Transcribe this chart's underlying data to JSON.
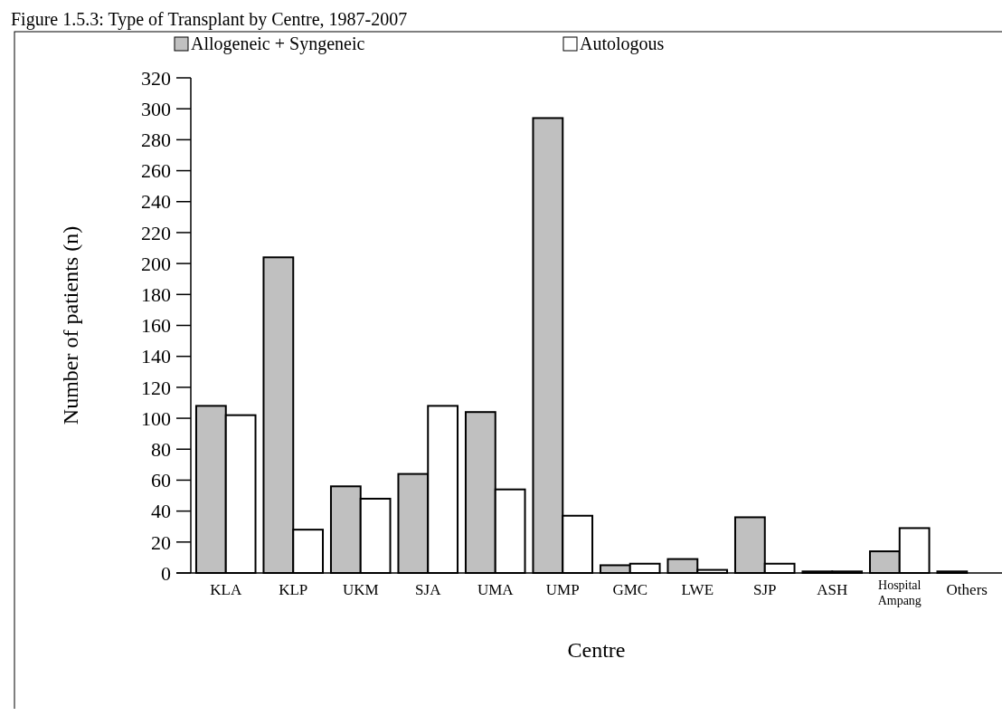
{
  "chart_data": {
    "type": "bar",
    "title": "Figure 1.5.3: Type of Transplant by Centre, 1987-2007",
    "xlabel": "Centre",
    "ylabel": "Number of patients (n)",
    "categories": [
      "KLA",
      "KLP",
      "UKM",
      "SJA",
      "UMA",
      "UMP",
      "GMC",
      "LWE",
      "SJP",
      "ASH",
      "Hospital Ampang",
      "Others"
    ],
    "series": [
      {
        "name": "Allogeneic + Syngeneic",
        "color": "#c0c0c0",
        "values": [
          108,
          204,
          56,
          64,
          104,
          294,
          5,
          9,
          36,
          1,
          14,
          1
        ]
      },
      {
        "name": "Autologous",
        "color": "#ffffff",
        "values": [
          102,
          28,
          48,
          108,
          54,
          37,
          6,
          2,
          6,
          1,
          29,
          0
        ]
      }
    ],
    "ylim": [
      0,
      320
    ],
    "yticks": [
      0,
      20,
      40,
      60,
      80,
      100,
      120,
      140,
      160,
      180,
      200,
      220,
      240,
      260,
      280,
      300,
      320
    ],
    "legend": "top",
    "grid": false
  }
}
